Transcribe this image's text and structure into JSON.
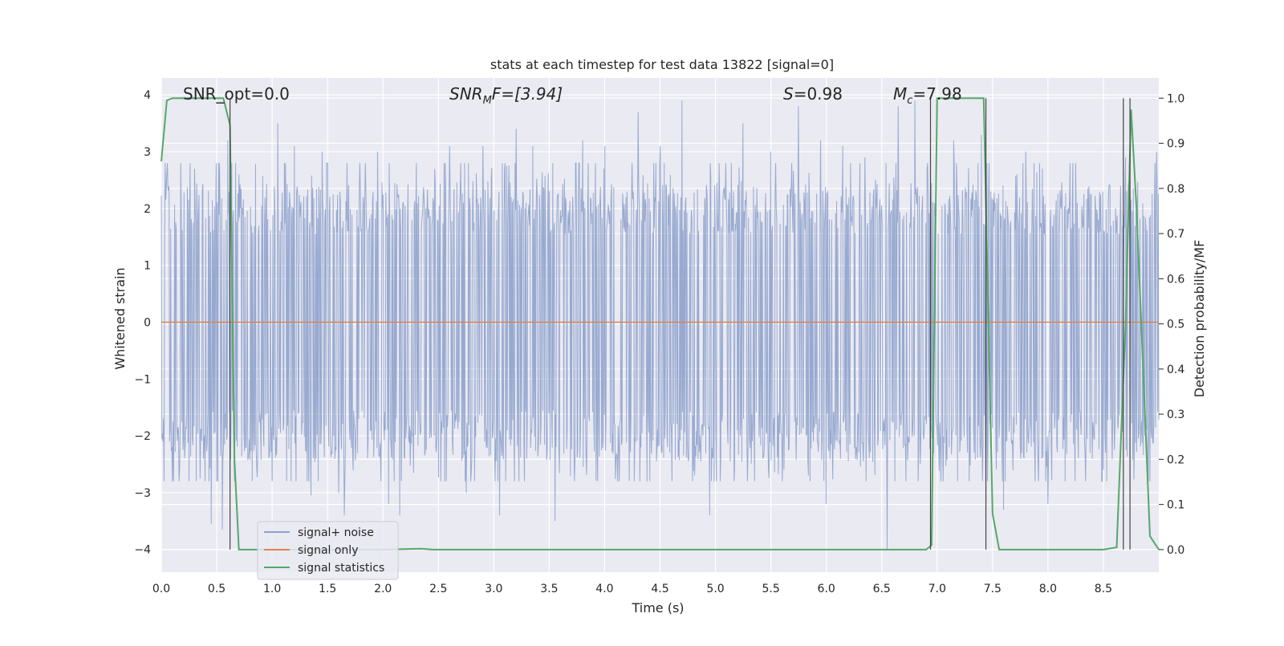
{
  "chart_data": {
    "type": "line",
    "title": "stats at each timestep for test data 13822 [signal=0]",
    "xlabel": "Time (s)",
    "ylabel": "Whitened strain",
    "y2label": "Detection probability/MF",
    "xlim": [
      0,
      9
    ],
    "ylim": [
      -4.4,
      4.3
    ],
    "y2lim": [
      -0.05,
      1.045
    ],
    "xticks": [
      "0.0",
      "0.5",
      "1.0",
      "1.5",
      "2.0",
      "2.5",
      "3.0",
      "3.5",
      "4.0",
      "4.5",
      "5.0",
      "5.5",
      "6.0",
      "6.5",
      "7.0",
      "7.5",
      "8.0",
      "8.5"
    ],
    "yticks": [
      "4",
      "3",
      "2",
      "1",
      "0",
      "−1",
      "−2",
      "−3",
      "−4"
    ],
    "y2ticks": [
      "1.0",
      "0.9",
      "0.8",
      "0.7",
      "0.6",
      "0.5",
      "0.4",
      "0.3",
      "0.2",
      "0.1",
      "0.0"
    ],
    "grid": true,
    "legend_position": "lower-left",
    "annotations": {
      "snr_opt": "SNR_opt=0.0",
      "snr_mf_base": "SNR",
      "snr_mf_sub": "M",
      "snr_mf_rest": "F=[3.94]",
      "s_var": "S",
      "s_rest": "=0.98",
      "mc_var": "M",
      "mc_sub": "c",
      "mc_rest": "=7.98"
    },
    "series": [
      {
        "name": "signal+ noise",
        "color": "#8ea2cc",
        "note_level": "noise envelope approx ±2.5",
        "peaks": [
          [
            0.05,
            2.6
          ],
          [
            0.3,
            2.7
          ],
          [
            0.45,
            -3.55
          ],
          [
            0.55,
            -3.65
          ],
          [
            0.6,
            3.2
          ],
          [
            0.7,
            2.6
          ],
          [
            1.05,
            3.5
          ],
          [
            1.2,
            3.1
          ],
          [
            1.35,
            -3.05
          ],
          [
            1.45,
            3.0
          ],
          [
            1.6,
            -3.0
          ],
          [
            1.65,
            -3.4
          ],
          [
            1.95,
            3.0
          ],
          [
            2.05,
            -3.2
          ],
          [
            2.15,
            -3.4
          ],
          [
            2.3,
            2.8
          ],
          [
            2.6,
            3.1
          ],
          [
            2.75,
            -3.0
          ],
          [
            2.9,
            3.1
          ],
          [
            3.05,
            -3.4
          ],
          [
            3.2,
            3.4
          ],
          [
            3.35,
            3.1
          ],
          [
            3.55,
            -3.5
          ],
          [
            3.8,
            3.2
          ],
          [
            4.0,
            3.1
          ],
          [
            4.3,
            3.7
          ],
          [
            4.5,
            3.1
          ],
          [
            4.7,
            3.9
          ],
          [
            4.95,
            -3.4
          ],
          [
            5.25,
            3.5
          ],
          [
            5.5,
            3.0
          ],
          [
            5.75,
            3.8
          ],
          [
            5.95,
            3.2
          ],
          [
            6.0,
            -3.2
          ],
          [
            6.15,
            3.1
          ],
          [
            6.35,
            2.9
          ],
          [
            6.55,
            -4.0
          ],
          [
            6.65,
            3.8
          ],
          [
            6.8,
            3.9
          ],
          [
            7.15,
            3.2
          ],
          [
            7.4,
            3.3
          ],
          [
            7.6,
            -3.3
          ],
          [
            7.8,
            3.0
          ],
          [
            7.95,
            2.7
          ],
          [
            8.0,
            -3.2
          ],
          [
            8.2,
            2.8
          ],
          [
            8.5,
            -2.6
          ],
          [
            8.7,
            2.9
          ],
          [
            8.98,
            3.0
          ]
        ]
      },
      {
        "name": "signal only",
        "color": "#dd8452",
        "x": [
          0,
          9
        ],
        "y": [
          0,
          0
        ]
      },
      {
        "name": "signal statistics",
        "color": "#55a868",
        "axis": "right",
        "x": [
          0.0,
          0.05,
          0.1,
          0.2,
          0.3,
          0.4,
          0.5,
          0.56,
          0.62,
          0.66,
          0.7,
          1.0,
          2.0,
          2.35,
          2.45,
          3.0,
          4.0,
          5.0,
          6.0,
          6.9,
          6.95,
          7.0,
          7.1,
          7.3,
          7.42,
          7.5,
          7.56,
          8.0,
          8.5,
          8.62,
          8.7,
          8.75,
          8.8,
          8.92,
          9.0
        ],
        "y": [
          0.86,
          0.995,
          1.0,
          1.0,
          1.0,
          1.0,
          1.0,
          1.0,
          0.94,
          0.2,
          0.0,
          0.0,
          0.0,
          0.002,
          0.0,
          0.0,
          0.0,
          0.0,
          0.0,
          0.0,
          0.01,
          1.0,
          1.0,
          1.0,
          1.0,
          0.08,
          0.0,
          0.0,
          0.0,
          0.005,
          0.5,
          0.975,
          0.75,
          0.03,
          0.0
        ]
      }
    ],
    "vlines": [
      0.62,
      6.94,
      7.44,
      8.68,
      8.74
    ]
  }
}
